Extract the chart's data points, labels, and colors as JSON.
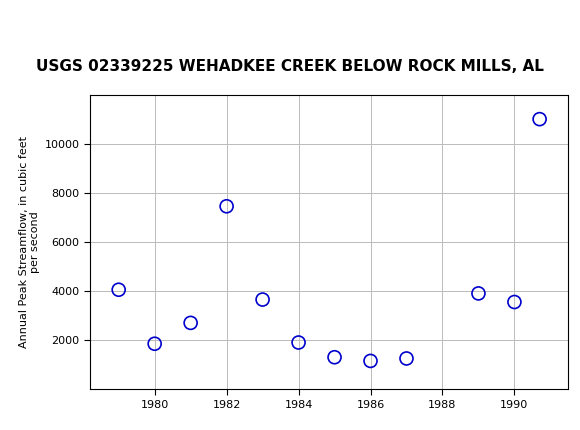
{
  "title": "USGS 02339225 WEHADKEE CREEK BELOW ROCK MILLS, AL",
  "ylabel_line1": "Annual Peak Streamflow, in cubic feet",
  "ylabel_line2": "per second",
  "years": [
    1979,
    1980,
    1981,
    1982,
    1983,
    1984,
    1985,
    1986,
    1987,
    1989,
    1990,
    1990.7
  ],
  "values": [
    4050,
    1850,
    2700,
    7450,
    3650,
    1900,
    1300,
    1150,
    1250,
    3900,
    3550,
    11000
  ],
  "xlim": [
    1978.2,
    1991.5
  ],
  "ylim": [
    0,
    12000
  ],
  "yticks": [
    2000,
    4000,
    6000,
    8000,
    10000
  ],
  "xticks": [
    1980,
    1982,
    1984,
    1986,
    1988,
    1990
  ],
  "marker_color": "#0000CC",
  "marker_facecolor": "none",
  "marker_size": 5,
  "marker_style": "o",
  "grid_color": "#BBBBBB",
  "bg_color": "#FFFFFF",
  "plot_bg": "#FFFFFF",
  "header_bg": "#1a6b3c",
  "title_fontsize": 11,
  "ylabel_fontsize": 8,
  "tick_fontsize": 8
}
